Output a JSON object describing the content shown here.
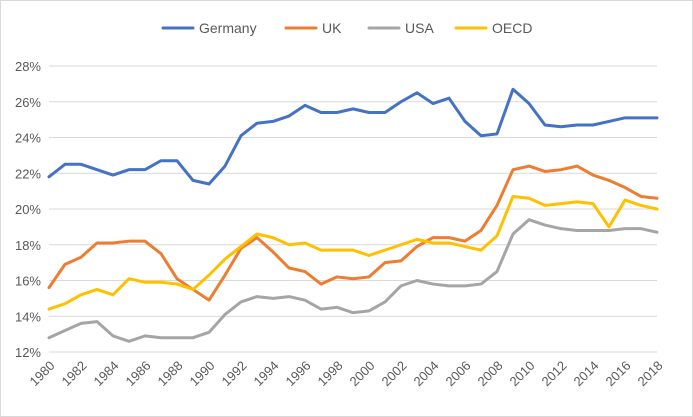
{
  "chart_data": {
    "type": "line",
    "x": [
      1980,
      1981,
      1982,
      1983,
      1984,
      1985,
      1986,
      1987,
      1988,
      1989,
      1990,
      1991,
      1992,
      1993,
      1994,
      1995,
      1996,
      1997,
      1998,
      1999,
      2000,
      2001,
      2002,
      2003,
      2004,
      2005,
      2006,
      2007,
      2008,
      2009,
      2010,
      2011,
      2012,
      2013,
      2014,
      2015,
      2016,
      2017,
      2018
    ],
    "x_tick_labels": [
      "1980",
      "1982",
      "1984",
      "1986",
      "1988",
      "1990",
      "1992",
      "1994",
      "1996",
      "1998",
      "2000",
      "2002",
      "2004",
      "2006",
      "2008",
      "2010",
      "2012",
      "2014",
      "2016",
      "2018"
    ],
    "y_tick_labels": [
      "12%",
      "14%",
      "16%",
      "18%",
      "20%",
      "22%",
      "24%",
      "26%",
      "28%"
    ],
    "ylim": [
      12,
      28
    ],
    "y_ticks": [
      12,
      14,
      16,
      18,
      20,
      22,
      24,
      26,
      28
    ],
    "grid": true,
    "legend_position": "top",
    "series": [
      {
        "name": "Germany",
        "color": "#4472c4",
        "values": [
          21.8,
          22.5,
          22.5,
          22.2,
          21.9,
          22.2,
          22.2,
          22.7,
          22.7,
          21.6,
          21.4,
          22.4,
          24.1,
          24.8,
          24.9,
          25.2,
          25.8,
          25.4,
          25.4,
          25.6,
          25.4,
          25.4,
          26.0,
          26.5,
          25.9,
          26.2,
          24.9,
          24.1,
          24.2,
          26.7,
          25.9,
          24.7,
          24.6,
          24.7,
          24.7,
          24.9,
          25.1,
          25.1,
          25.1
        ]
      },
      {
        "name": "UK",
        "color": "#ed7d31",
        "values": [
          15.6,
          16.9,
          17.3,
          18.1,
          18.1,
          18.2,
          18.2,
          17.5,
          16.1,
          15.5,
          14.9,
          16.3,
          17.8,
          18.4,
          17.6,
          16.7,
          16.5,
          15.8,
          16.2,
          16.1,
          16.2,
          17.0,
          17.1,
          17.9,
          18.4,
          18.4,
          18.2,
          18.8,
          20.2,
          22.2,
          22.4,
          22.1,
          22.2,
          22.4,
          21.9,
          21.6,
          21.2,
          20.7,
          20.6
        ]
      },
      {
        "name": "USA",
        "color": "#a5a5a5",
        "values": [
          12.8,
          13.2,
          13.6,
          13.7,
          12.9,
          12.6,
          12.9,
          12.8,
          12.8,
          12.8,
          13.1,
          14.1,
          14.8,
          15.1,
          15.0,
          15.1,
          14.9,
          14.4,
          14.5,
          14.2,
          14.3,
          14.8,
          15.7,
          16.0,
          15.8,
          15.7,
          15.7,
          15.8,
          16.5,
          18.6,
          19.4,
          19.1,
          18.9,
          18.8,
          18.8,
          18.8,
          18.9,
          18.9,
          18.7
        ]
      },
      {
        "name": "OECD",
        "color": "#ffc000",
        "values": [
          14.4,
          14.7,
          15.2,
          15.5,
          15.2,
          16.1,
          15.9,
          15.9,
          15.8,
          15.5,
          16.3,
          17.2,
          17.9,
          18.6,
          18.4,
          18.0,
          18.1,
          17.7,
          17.7,
          17.7,
          17.4,
          17.7,
          18.0,
          18.3,
          18.1,
          18.1,
          17.9,
          17.7,
          18.5,
          20.7,
          20.6,
          20.2,
          20.3,
          20.4,
          20.3,
          19.0,
          20.5,
          20.2,
          20.0
        ]
      }
    ]
  }
}
